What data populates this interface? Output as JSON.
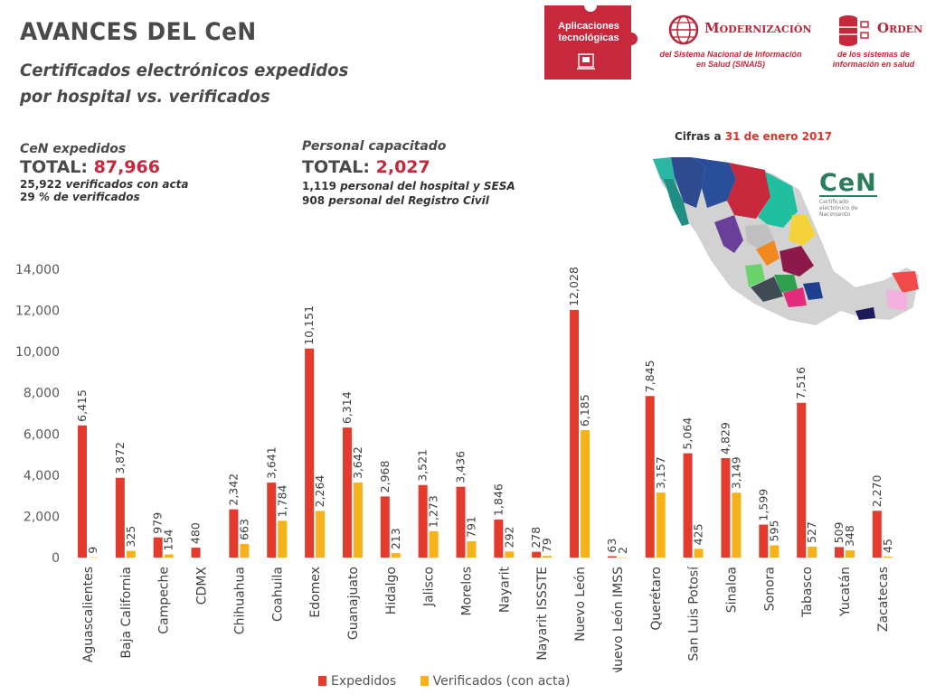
{
  "header": {
    "title": "AVANCES DEL CeN",
    "subtitle_line1": "Certificados electrónicos expedidos",
    "subtitle_line2": "por hospital vs. verificados"
  },
  "stats_cen": {
    "label": "CeN expedidos",
    "total_label": "TOTAL:",
    "total_value": "87,966",
    "line1_num": "25,922",
    "line1_text": "verificados con acta",
    "line2_num": "29",
    "line2_text": "% de verificados"
  },
  "stats_personal": {
    "label": "Personal capacitado",
    "total_label": "TOTAL:",
    "total_value": "2,027",
    "line1_num": "1,119",
    "line1_text": "personal del hospital y SESA",
    "line2_num": "908",
    "line2_text": "personal del Registro Civil"
  },
  "logos": {
    "puzzle_line1": "Aplicaciones",
    "puzzle_line2": "tecnológicas",
    "modernizacion_title": "Modernización",
    "modernizacion_sub1": "del Sistema Nacional de Información",
    "modernizacion_sub2": "en Salud (SINAIS)",
    "orden_title": "Orden",
    "orden_sub1": "de los sistemas de",
    "orden_sub2": "información en salud",
    "cen_word": "CeN",
    "cen_small1": "Certificado",
    "cen_small2": "electrónico de",
    "cen_small3": "Nacimiento"
  },
  "fecha": {
    "prefix": "Cifras a",
    "date": "31 de enero 2017"
  },
  "colors": {
    "expedidos": "#e33b2e",
    "verificados": "#f7b21a",
    "brand_red": "#c8283c"
  },
  "chart_data": {
    "type": "bar",
    "categories": [
      "Aguascalientes",
      "Baja California",
      "Campeche",
      "CDMX",
      "Chihuahua",
      "Coahuila",
      "Edomex",
      "Guanajuato",
      "Hidalgo",
      "Jalisco",
      "Morelos",
      "Nayarit",
      "Nayarit ISSSTE",
      "Nuevo León",
      "Nuevo León IMSS",
      "Querétaro",
      "San Luis Potosí",
      "Sinaloa",
      "Sonora",
      "Tabasco",
      "Yucatán",
      "Zacatecas"
    ],
    "series": [
      {
        "name": "Expedidos",
        "values": [
          6415,
          3872,
          979,
          480,
          2342,
          3641,
          10151,
          6314,
          2968,
          3521,
          3436,
          1846,
          278,
          12028,
          63,
          7845,
          5064,
          4829,
          1599,
          7516,
          509,
          2270
        ]
      },
      {
        "name": "Verificados (con acta)",
        "values": [
          9,
          325,
          154,
          null,
          663,
          1784,
          2264,
          3642,
          213,
          1273,
          791,
          292,
          79,
          6185,
          2,
          3157,
          425,
          3149,
          595,
          527,
          348,
          45
        ]
      }
    ],
    "value_labels_expedidos": [
      "6,415",
      "3,872",
      "979",
      "480",
      "2,342",
      "3,641",
      "10,151",
      "6,314",
      "2,968",
      "3,521",
      "3,436",
      "1,846",
      "278",
      "12,028",
      "63",
      "7,845",
      "5,064",
      "4,829",
      "1,599",
      "7,516",
      "509",
      "2,270"
    ],
    "value_labels_verificados": [
      "9",
      "325",
      "154",
      "",
      "663",
      "1,784",
      "2,264",
      "3,642",
      "213",
      "1,273",
      "791",
      "292",
      "79",
      "6,185",
      "2",
      "3,157",
      "425",
      "3,149",
      "595",
      "527",
      "348",
      "45"
    ],
    "y_ticks": [
      "0",
      "2,000",
      "4,000",
      "6,000",
      "8,000",
      "10,000",
      "12,000",
      "14,000"
    ],
    "y_tick_values": [
      0,
      2000,
      4000,
      6000,
      8000,
      10000,
      12000,
      14000
    ],
    "ylim": [
      0,
      14000
    ],
    "grid": false,
    "legend_position": "bottom"
  }
}
